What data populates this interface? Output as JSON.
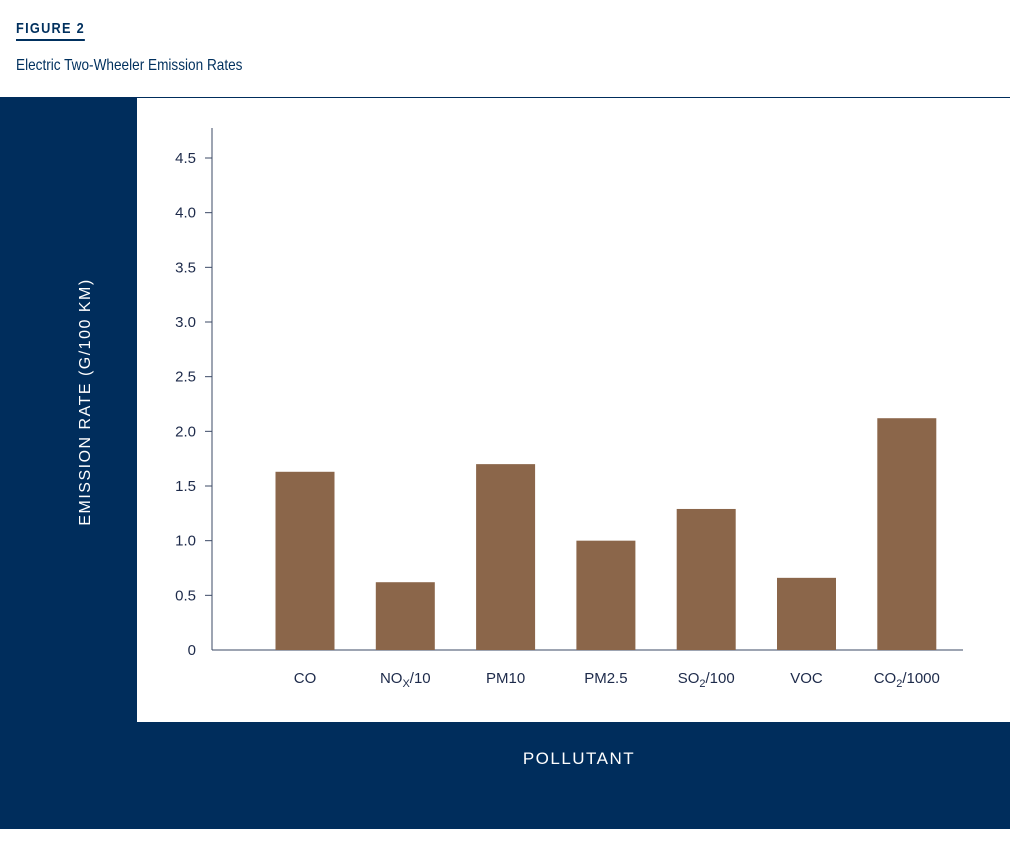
{
  "header": {
    "figure_label": "FIGURE 2",
    "title": "Electric Two-Wheeler Emission Rates"
  },
  "colors": {
    "bar": "#8b664a",
    "panel": "#002d5c",
    "axis": "#3b4a66"
  },
  "chart_data": {
    "type": "bar",
    "title": "Electric Two-Wheeler Emission Rates",
    "xlabel": "POLLUTANT",
    "ylabel": "EMISSION RATE (G/100 KM)",
    "ylim": [
      0,
      4.7
    ],
    "yticks": [
      "0",
      "0.5",
      "1.0",
      "1.5",
      "2.0",
      "2.5",
      "3.0",
      "3.5",
      "4.0",
      "4.5"
    ],
    "categories": [
      {
        "base": "CO",
        "sub": "",
        "suffix": ""
      },
      {
        "base": "NO",
        "sub": "X",
        "suffix": "/10"
      },
      {
        "base": "PM10",
        "sub": "",
        "suffix": ""
      },
      {
        "base": "PM2.5",
        "sub": "",
        "suffix": ""
      },
      {
        "base": "SO",
        "sub": "2",
        "suffix": "/100"
      },
      {
        "base": "VOC",
        "sub": "",
        "suffix": ""
      },
      {
        "base": "CO",
        "sub": "2",
        "suffix": "/1000"
      }
    ],
    "values": [
      1.63,
      0.62,
      1.7,
      1.0,
      1.29,
      0.66,
      2.12
    ],
    "grid": false,
    "legend": "none"
  }
}
